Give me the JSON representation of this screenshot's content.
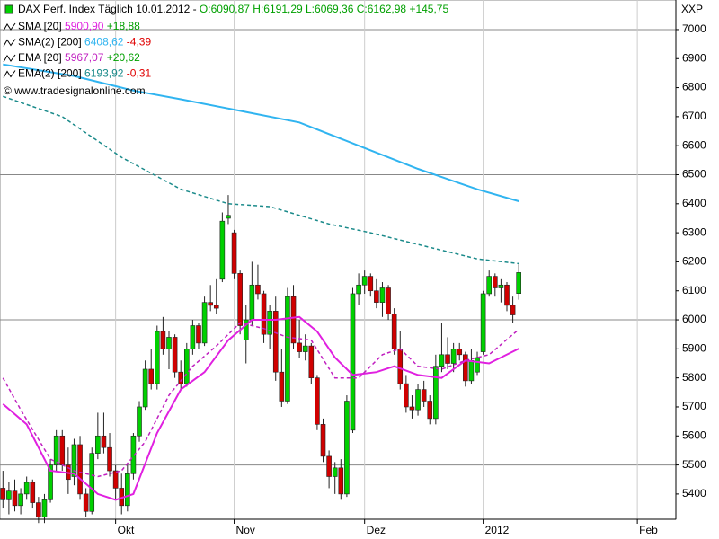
{
  "header": {
    "title": "DAX Perf. Index Täglich",
    "date": "10.01.2012 -",
    "ohlc": "O:6090,87 H:6191,29 L:6069,36 C:6162,98 +145,75",
    "symbol": "XXP",
    "watermark": "© www.tradesignalonline.com"
  },
  "legend": [
    {
      "name": "SMA [20]",
      "value": "5900,90",
      "change": "+18,88"
    },
    {
      "name": "SMA(2) [200]",
      "value": "6408,62",
      "change": "-4,39"
    },
    {
      "name": "EMA [20]",
      "value": "5967,07",
      "change": "+20,62"
    },
    {
      "name": "EMA(2) [200]",
      "value": "6193,92",
      "change": "-0,31"
    }
  ],
  "chart_data": {
    "type": "candlestick",
    "xlim": [
      -0.5,
      113.5
    ],
    "xticks": [
      {
        "value": 19,
        "label": "Okt"
      },
      {
        "value": 39,
        "label": "Nov"
      },
      {
        "value": 61,
        "label": "Dez"
      },
      {
        "value": 81,
        "label": "2012"
      },
      {
        "value": 107,
        "label": "Feb"
      }
    ],
    "ylim": [
      5313,
      7102
    ],
    "yticks": [
      5400,
      5500,
      5600,
      5700,
      5800,
      5900,
      6000,
      6100,
      6200,
      6300,
      6400,
      6500,
      6600,
      6700,
      6800,
      6900,
      7000
    ],
    "grid_yticks": [
      5500,
      6000,
      6500,
      7000
    ],
    "up_color": "#00d000",
    "down_color": "#d00000",
    "candles": [
      [
        5420,
        5480,
        5350,
        5380
      ],
      [
        5380,
        5440,
        5330,
        5410
      ],
      [
        5410,
        5450,
        5340,
        5360
      ],
      [
        5360,
        5420,
        5330,
        5400
      ],
      [
        5400,
        5460,
        5380,
        5440
      ],
      [
        5440,
        5450,
        5350,
        5370
      ],
      [
        5370,
        5390,
        5300,
        5320
      ],
      [
        5320,
        5400,
        5300,
        5380
      ],
      [
        5380,
        5520,
        5370,
        5500
      ],
      [
        5500,
        5620,
        5480,
        5600
      ],
      [
        5600,
        5620,
        5480,
        5500
      ],
      [
        5500,
        5560,
        5400,
        5450
      ],
      [
        5460,
        5590,
        5430,
        5570
      ],
      [
        5570,
        5600,
        5380,
        5400
      ],
      [
        5400,
        5420,
        5320,
        5340
      ],
      [
        5340,
        5560,
        5330,
        5540
      ],
      [
        5540,
        5680,
        5520,
        5600
      ],
      [
        5600,
        5680,
        5540,
        5560
      ],
      [
        5560,
        5610,
        5460,
        5480
      ],
      [
        5480,
        5500,
        5380,
        5420
      ],
      [
        5420,
        5470,
        5330,
        5360
      ],
      [
        5360,
        5500,
        5340,
        5470
      ],
      [
        5470,
        5610,
        5450,
        5600
      ],
      [
        5600,
        5720,
        5580,
        5700
      ],
      [
        5700,
        5860,
        5690,
        5830
      ],
      [
        5830,
        5900,
        5760,
        5780
      ],
      [
        5780,
        5980,
        5760,
        5960
      ],
      [
        5960,
        6010,
        5880,
        5900
      ],
      [
        5900,
        5960,
        5830,
        5940
      ],
      [
        5940,
        5950,
        5800,
        5820
      ],
      [
        5820,
        5860,
        5760,
        5780
      ],
      [
        5780,
        5920,
        5770,
        5900
      ],
      [
        5900,
        6000,
        5880,
        5980
      ],
      [
        5980,
        5990,
        5900,
        5920
      ],
      [
        5920,
        6080,
        5910,
        6060
      ],
      [
        6060,
        6120,
        6030,
        6050
      ],
      [
        6050,
        6140,
        6020,
        6040
      ],
      [
        6140,
        6370,
        6130,
        6340
      ],
      [
        6350,
        6430,
        6330,
        6360
      ],
      [
        6300,
        6310,
        6140,
        6160
      ],
      [
        6160,
        6170,
        5950,
        5980
      ],
      [
        5930,
        6050,
        5850,
        6000
      ],
      [
        6000,
        6200,
        5980,
        6120
      ],
      [
        6120,
        6190,
        6070,
        6090
      ],
      [
        6090,
        6100,
        5920,
        5950
      ],
      [
        5950,
        6050,
        5900,
        6030
      ],
      [
        6030,
        6080,
        5790,
        5820
      ],
      [
        5820,
        5900,
        5700,
        5720
      ],
      [
        5720,
        6110,
        5710,
        6080
      ],
      [
        6080,
        6120,
        5900,
        5920
      ],
      [
        5920,
        6000,
        5870,
        5890
      ],
      [
        5890,
        5950,
        5860,
        5910
      ],
      [
        5910,
        5920,
        5780,
        5800
      ],
      [
        5800,
        5810,
        5620,
        5640
      ],
      [
        5640,
        5660,
        5510,
        5530
      ],
      [
        5530,
        5550,
        5420,
        5460
      ],
      [
        5460,
        5510,
        5400,
        5490
      ],
      [
        5490,
        5520,
        5380,
        5400
      ],
      [
        5400,
        5740,
        5390,
        5720
      ],
      [
        5620,
        6110,
        5610,
        6090
      ],
      [
        6090,
        6160,
        6050,
        6120
      ],
      [
        6120,
        6170,
        6090,
        6150
      ],
      [
        6150,
        6160,
        6080,
        6100
      ],
      [
        6100,
        6140,
        6040,
        6060
      ],
      [
        6060,
        6130,
        6010,
        6110
      ],
      [
        6110,
        6120,
        6000,
        6020
      ],
      [
        6020,
        6040,
        5880,
        5900
      ],
      [
        5900,
        5960,
        5760,
        5780
      ],
      [
        5780,
        5810,
        5680,
        5700
      ],
      [
        5700,
        5740,
        5660,
        5690
      ],
      [
        5690,
        5780,
        5670,
        5760
      ],
      [
        5760,
        5790,
        5700,
        5720
      ],
      [
        5720,
        5740,
        5640,
        5660
      ],
      [
        5660,
        5880,
        5640,
        5840
      ],
      [
        5840,
        5990,
        5820,
        5880
      ],
      [
        5880,
        5940,
        5830,
        5850
      ],
      [
        5850,
        5920,
        5820,
        5900
      ],
      [
        5900,
        5920,
        5860,
        5880
      ],
      [
        5880,
        5890,
        5770,
        5790
      ],
      [
        5790,
        5900,
        5780,
        5860
      ],
      [
        5820,
        5890,
        5810,
        5870
      ],
      [
        5890,
        6100,
        5880,
        6090
      ],
      [
        6090,
        6170,
        6080,
        6150
      ],
      [
        6150,
        6160,
        6080,
        6110
      ],
      [
        6110,
        6140,
        6060,
        6120
      ],
      [
        6120,
        6130,
        6030,
        6050
      ],
      [
        6050,
        6080,
        5990,
        6017
      ],
      [
        6090.87,
        6191.29,
        6069.36,
        6162.98
      ]
    ],
    "series": [
      {
        "name": "SMA [20]",
        "color": "#e020e0",
        "dashed": false,
        "x": [
          0,
          4,
          8,
          12,
          16,
          19,
          22,
          26,
          30,
          34,
          38,
          42,
          46,
          50,
          53,
          56,
          59,
          63,
          66,
          70,
          74,
          78,
          82,
          87
        ],
        "values": [
          5710,
          5640,
          5480,
          5470,
          5400,
          5380,
          5400,
          5610,
          5760,
          5820,
          5930,
          6000,
          6000,
          6010,
          5960,
          5870,
          5810,
          5820,
          5840,
          5810,
          5800,
          5860,
          5850,
          5900.9
        ]
      },
      {
        "name": "SMA(2) [200]",
        "color": "#30b4f0",
        "dashed": false,
        "x": [
          0,
          12,
          22,
          30,
          40,
          50,
          60,
          70,
          80,
          87
        ],
        "values": [
          6880,
          6840,
          6790,
          6760,
          6720,
          6680,
          6600,
          6520,
          6450,
          6408.62
        ]
      },
      {
        "name": "EMA [20]",
        "color": "#c020c0",
        "dashed": true,
        "x": [
          0,
          3,
          8,
          12,
          16,
          20,
          24,
          28,
          32,
          36,
          40,
          44,
          48,
          52,
          56,
          60,
          64,
          67,
          70,
          74,
          78,
          82,
          87
        ],
        "values": [
          5800,
          5690,
          5520,
          5480,
          5460,
          5480,
          5580,
          5740,
          5840,
          5910,
          5990,
          5970,
          5940,
          5930,
          5800,
          5800,
          5880,
          5900,
          5840,
          5830,
          5860,
          5880,
          5967.07
        ]
      },
      {
        "name": "EMA(2) [200]",
        "color": "#1a8a8a",
        "dashed": true,
        "x": [
          0,
          10,
          20,
          30,
          38,
          45,
          55,
          62,
          72,
          80,
          87
        ],
        "values": [
          6770,
          6700,
          6560,
          6450,
          6400,
          6390,
          6330,
          6300,
          6250,
          6210,
          6193.92
        ]
      }
    ]
  }
}
